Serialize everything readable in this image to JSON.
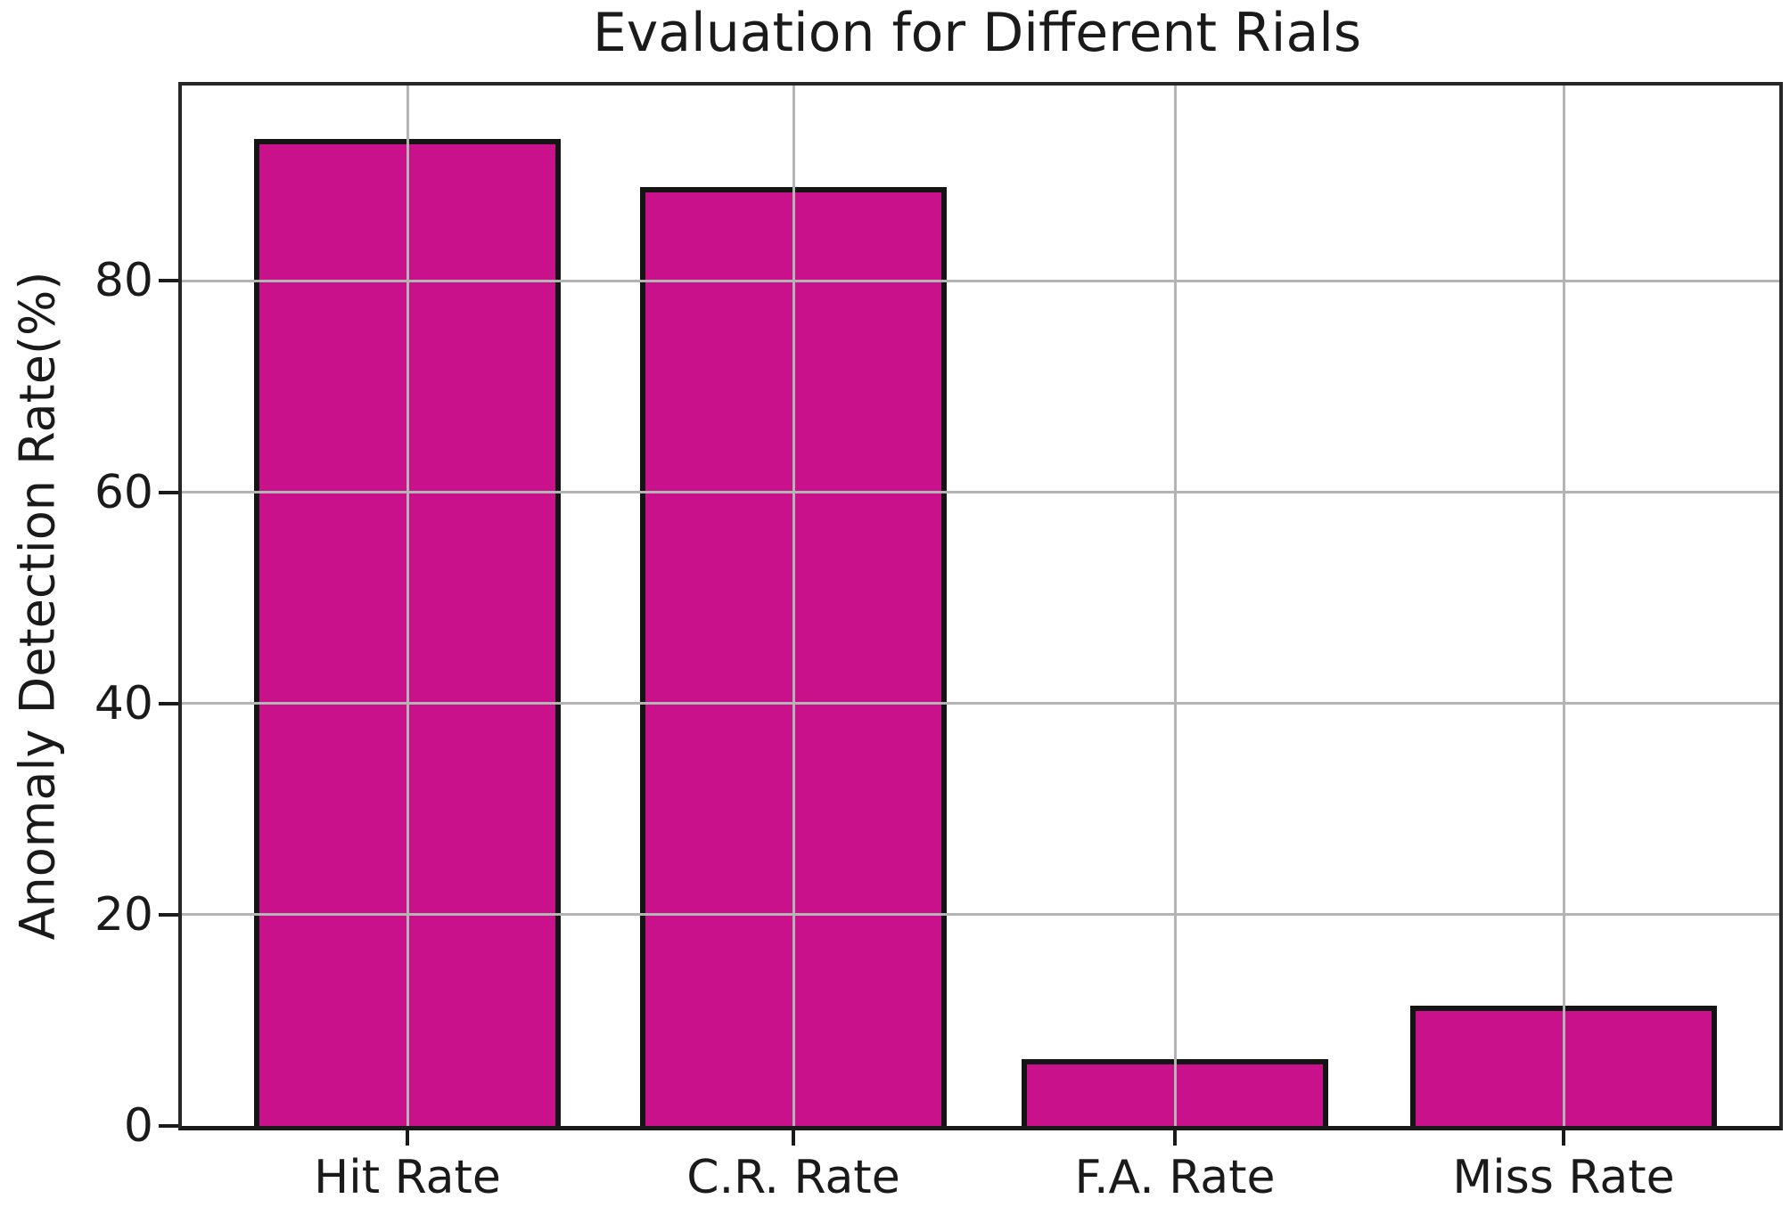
{
  "chart_data": {
    "type": "bar",
    "title": "Evaluation for Different Rials",
    "xlabel": "",
    "ylabel": "Anomaly Detection Rate(%)",
    "categories": [
      "Hit Rate",
      "C.R. Rate",
      "F.A. Rate",
      "Miss Rate"
    ],
    "values": [
      93.4,
      88.9,
      6.3,
      11.4
    ],
    "ylim": [
      0,
      98.5
    ],
    "yticks": [
      0,
      20,
      40,
      60,
      80
    ],
    "grid": true,
    "grid_drawn_above_bars": true,
    "legend": null,
    "colors": {
      "bar_fill": "#C9118C",
      "bar_edge": "#141414",
      "grid": "#B4B4B4",
      "spine": "#262626",
      "text": "#1A1A1A",
      "background": "#FFFFFF"
    }
  }
}
